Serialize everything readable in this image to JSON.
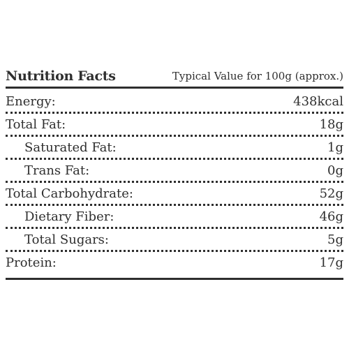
{
  "header": {
    "title": "Nutrition Facts",
    "note": "Typical Value for 100g (approx.)"
  },
  "rows": [
    {
      "label": "Energy:",
      "value": "438kcal"
    },
    {
      "label": "Total Fat:",
      "value": "18g"
    },
    {
      "label": "Saturated Fat:",
      "value": "1g"
    },
    {
      "label": "Trans Fat:",
      "value": "0g"
    },
    {
      "label": "Total Carbohydrate:",
      "value": "52g"
    },
    {
      "label": "Dietary Fiber:",
      "value": "46g"
    },
    {
      "label": "Total Sugars:",
      "value": "5g"
    },
    {
      "label": "Protein:",
      "value": "17g"
    }
  ]
}
